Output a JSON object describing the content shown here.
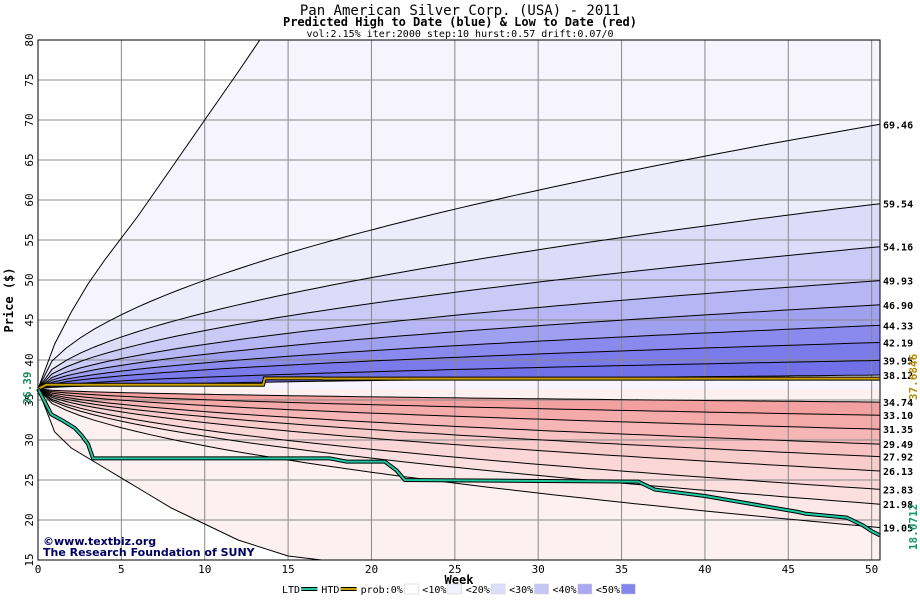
{
  "chart_data": {
    "type": "area",
    "title": "Pan American Silver Corp. (USA) - 2011",
    "subtitle": "Predicted High to Date (blue) &  Low to Date (red)",
    "params": "vol:2.15% iter:2000 step:10 hurst:0.57 drift:0.07/0",
    "xlabel": "Week",
    "ylabel": "Price ($)",
    "xlim": [
      0,
      50.5
    ],
    "ylim": [
      15,
      80
    ],
    "xticks": [
      0,
      5,
      10,
      15,
      20,
      25,
      30,
      35,
      40,
      45,
      50
    ],
    "yticks": [
      15,
      20,
      25,
      30,
      35,
      40,
      45,
      50,
      55,
      60,
      65,
      70,
      75,
      80
    ],
    "grid": true,
    "start_price": 36.39,
    "start_label": "36.39",
    "high_levels": [
      69.46,
      59.54,
      54.16,
      49.93,
      46.9,
      44.33,
      42.19,
      39.95,
      38.12
    ],
    "high_labels": [
      "69.46",
      "59.54",
      "54.16",
      "49.93",
      "46.90",
      "44.33",
      "42.19",
      "39.95",
      "38.12"
    ],
    "low_levels": [
      34.74,
      33.1,
      31.35,
      29.49,
      27.92,
      26.13,
      23.83,
      21.98,
      19.05
    ],
    "low_labels": [
      "34.74",
      "33.10",
      "31.35",
      "29.49",
      "27.92",
      "26.13",
      "23.83",
      "21.98",
      "19.05"
    ],
    "outer_high_curve": {
      "x": [
        0,
        1,
        2,
        3,
        4,
        6,
        8,
        10,
        12,
        13.3
      ],
      "y": [
        36.39,
        42,
        46,
        49.5,
        52.5,
        58,
        64,
        70,
        76,
        80
      ]
    },
    "outer_low_curve": {
      "x": [
        0,
        1,
        2,
        4,
        6,
        8,
        10,
        12,
        15,
        17
      ],
      "y": [
        36.39,
        31,
        29,
        26.5,
        24,
        21.5,
        19.5,
        17.5,
        15.5,
        15
      ]
    },
    "htd_series": {
      "name": "HTD",
      "color": "#c8a000",
      "x": [
        0,
        0.5,
        3.5,
        3.6,
        13.5,
        13.6,
        17,
        17.1,
        50.5
      ],
      "y": [
        36.39,
        36.9,
        36.9,
        36.9,
        36.9,
        37.7,
        37.7,
        37.68,
        37.68
      ]
    },
    "ltd_series": {
      "name": "LTD",
      "color": "#20c8a0",
      "x": [
        0,
        0.4,
        0.8,
        1.5,
        2.2,
        2.6,
        3.0,
        3.3,
        10,
        15,
        17.5,
        18.5,
        20.8,
        21.5,
        22,
        36,
        37,
        40,
        45.6,
        46,
        48.5,
        49.5,
        50,
        50.5
      ],
      "y": [
        36.39,
        34.8,
        33.2,
        32.4,
        31.5,
        30.6,
        29.5,
        27.7,
        27.7,
        27.7,
        27.7,
        27.3,
        27.3,
        26.2,
        25.0,
        24.8,
        23.8,
        23.0,
        21.0,
        20.8,
        20.3,
        19.3,
        18.6,
        18.07
      ]
    },
    "current_high_label": "37.6846",
    "current_low_label": "18.0712",
    "band_colors": [
      "#fdfaff",
      "#e6e6fb",
      "#d2d2f8",
      "#bcbcf5",
      "#a3a3f2",
      "#8686ee"
    ],
    "low_band_colors": [
      "#fdecec",
      "#fbd6d6",
      "#f8c0c0",
      "#f5a5a5",
      "#f08a8a",
      "#ec7070"
    ],
    "legend": [
      {
        "label": "LTD",
        "color": "#20c8a0"
      },
      {
        "label": "HTD",
        "color": "#c8a000"
      },
      {
        "label": "prob:0%",
        "color": "#ffffff"
      },
      {
        "label": "<10%",
        "color": "#f2f2fd"
      },
      {
        "label": "<20%",
        "color": "#dedef9"
      },
      {
        "label": "<30%",
        "color": "#c6c6f6"
      },
      {
        "label": "<40%",
        "color": "#a9a9f2"
      },
      {
        "label": "<50%",
        "color": "#8585ee"
      }
    ],
    "watermark_line1": "www.textbiz.org",
    "watermark_line2": "The Research Foundation of SUNY"
  }
}
